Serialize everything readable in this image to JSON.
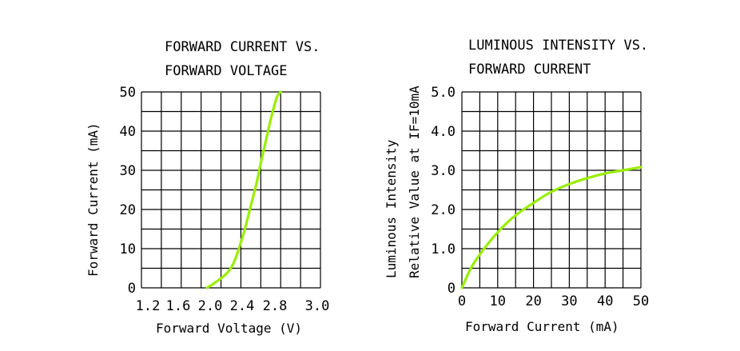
{
  "charts": [
    {
      "title_lines": [
        "FORWARD CURRENT VS.",
        "FORWARD VOLTAGE"
      ]
    },
    {
      "title_lines": [
        "LUMINOUS INTENSITY VS.",
        "FORWARD CURRENT"
      ]
    }
  ],
  "chart_data": [
    {
      "type": "line",
      "title": "FORWARD CURRENT VS. FORWARD VOLTAGE",
      "xlabel": "Forward Voltage (V)",
      "ylabel": "Forward Current (mA)",
      "xlim": [
        1.2,
        3.0
      ],
      "ylim": [
        0,
        50
      ],
      "x_ticks": [
        "1.2",
        "1.6",
        "2.0",
        "2.4",
        "2.8",
        "3.0"
      ],
      "x_tick_values": [
        1.2,
        1.6,
        2.0,
        2.4,
        2.8,
        3.0
      ],
      "y_ticks": [
        "0",
        "10",
        "20",
        "30",
        "40",
        "50"
      ],
      "y_tick_values": [
        0,
        10,
        20,
        30,
        40,
        50
      ],
      "grid": true,
      "series": [
        {
          "color": "#99ee00",
          "x": [
            1.86,
            1.95,
            2.05,
            2.12,
            2.18,
            2.24,
            2.3,
            2.36,
            2.41,
            2.46,
            2.51,
            2.56,
            2.6
          ],
          "y": [
            0,
            1.5,
            3.5,
            6,
            10,
            15,
            21,
            27,
            33,
            38.5,
            44,
            48.5,
            50
          ]
        }
      ]
    },
    {
      "type": "line",
      "title": "LUMINOUS INTENSITY VS. FORWARD CURRENT",
      "xlabel": "Forward Current (mA)",
      "ylabel_lines": [
        "Luminous Intensity",
        "Relative Value at IF=10mA"
      ],
      "xlim": [
        0,
        50
      ],
      "ylim": [
        0,
        5.0
      ],
      "x_ticks": [
        "0",
        "10",
        "20",
        "30",
        "40",
        "50"
      ],
      "x_tick_values": [
        0,
        10,
        20,
        30,
        40,
        50
      ],
      "y_ticks": [
        "0",
        "1.0",
        "2.0",
        "3.0",
        "4.0",
        "5.0"
      ],
      "y_tick_values": [
        0,
        1.0,
        2.0,
        3.0,
        4.0,
        5.0
      ],
      "grid": true,
      "series": [
        {
          "color": "#99ee00",
          "x": [
            0,
            2.5,
            5,
            7.5,
            10,
            12.5,
            15,
            20,
            25,
            30,
            35,
            40,
            45,
            50
          ],
          "y": [
            0,
            0.5,
            0.85,
            1.15,
            1.42,
            1.65,
            1.85,
            2.17,
            2.45,
            2.65,
            2.8,
            2.92,
            3.0,
            3.08
          ]
        }
      ]
    }
  ]
}
